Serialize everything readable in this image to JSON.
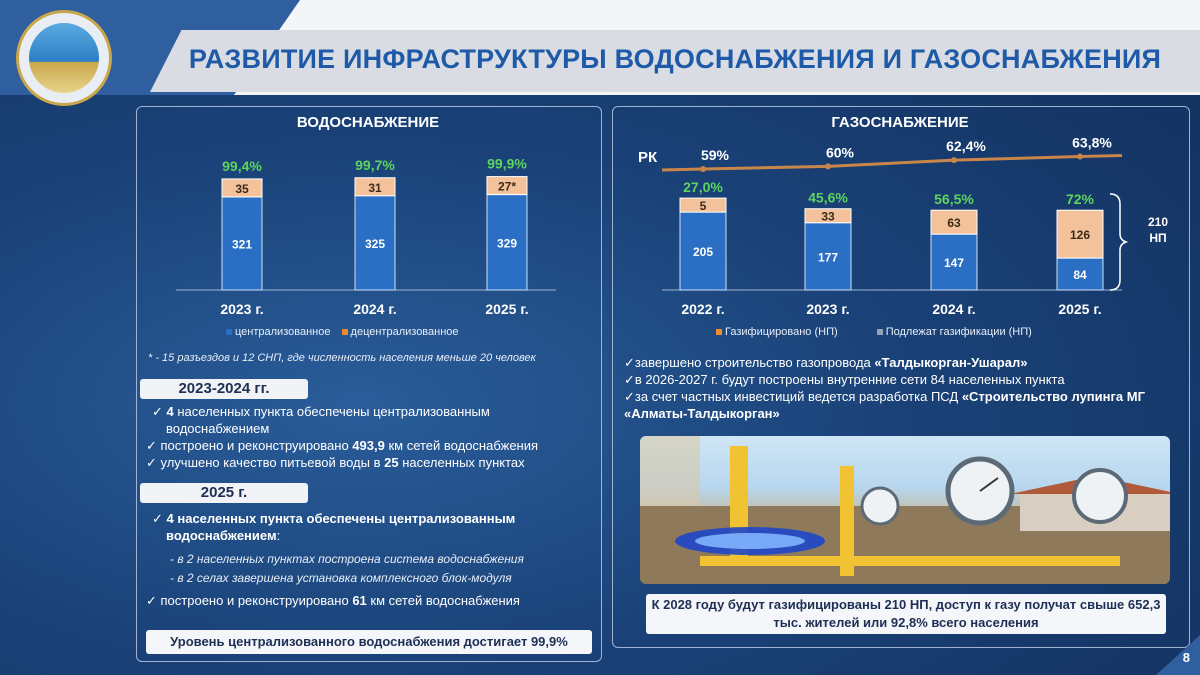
{
  "header": {
    "title": "РАЗВИТИЕ ИНФРАСТРУКТУРЫ ВОДОСНАБЖЕНИЯ И ГАЗОСНАБЖЕНИЯ"
  },
  "water": {
    "title": "ВОДОСНАБЖЕНИЕ",
    "note": "* - 15 разъездов и 12 СНП, где численность населения меньше 20 человек",
    "section1_label": "2023-2024 гг.",
    "bullets1": [
      [
        "✓ ",
        "4",
        " населенных пункта обеспечены централизованным водоснабжением"
      ],
      [
        "✓ построено и реконструировано ",
        "493,9",
        " км сетей водоснабжения"
      ],
      [
        "✓ улучшено качество питьевой воды в ",
        "25",
        " населенных пунктах"
      ]
    ],
    "section2_label": "2025 г.",
    "bullet2_main": "4 населенных пункта обеспечены централизованным водоснабжением",
    "bullet2_sub1": "- в 2 населенных пунктах построена система водоснабжения",
    "bullet2_sub2": "- в 2 селах завершена установка комплексного блок-модуля",
    "bullet2_last_pre": "построено и реконструировано ",
    "bullet2_last_num": "61",
    "bullet2_last_post": " км сетей водоснабжения",
    "footer": "Уровень централизованного водоснабжения достигает 99,9%"
  },
  "gas": {
    "title": "ГАЗОСНАБЖЕНИЕ",
    "rk_label": "РК",
    "bracket_label": "210 НП",
    "bullets": [
      [
        "✓завершено строительство газопровода ",
        "«Талдыкорган-Ушарал»",
        ""
      ],
      [
        "✓в 2026-2027 г. будут построены внутренние сети 84 населенных пункта",
        "",
        ""
      ],
      [
        "✓за счет частных инвестиций ведется разработка ПСД ",
        "«Строительство лупинга МГ «Алматы-Талдыкорган»",
        ""
      ]
    ],
    "footer": "К 2028 году будут газифицированы 210 НП, доступ к газу получат свыше 652,3 тыс. жителей или 92,8% всего населения"
  },
  "page_number": "8",
  "chart_data": [
    {
      "type": "bar",
      "stacked": true,
      "categories": [
        "2023 г.",
        "2024 г.",
        "2025 г."
      ],
      "series": [
        {
          "name": "централизованное",
          "values": [
            321,
            325,
            329
          ],
          "color": "#2b6fc4"
        },
        {
          "name": "децентрализованное",
          "values": [
            35,
            31,
            27
          ],
          "color": "#f4c29a"
        }
      ],
      "segment_labels_top": [
        "35",
        "31",
        "27*"
      ],
      "top_labels": [
        "99,4%",
        "99,7%",
        "99,9%"
      ]
    },
    {
      "type": "bar",
      "stacked": true,
      "categories": [
        "2022 г.",
        "2023 г.",
        "2024 г.",
        "2025 г."
      ],
      "series": [
        {
          "name": "Подлежат газификации (НП)",
          "values": [
            205,
            177,
            147,
            84
          ],
          "color": "#2b6fc4"
        },
        {
          "name": "Газифицировано (НП)",
          "values": [
            5,
            33,
            63,
            126
          ],
          "color": "#f4c29a"
        }
      ],
      "top_labels": [
        "27,0%",
        "45,6%",
        "56,5%",
        "72%"
      ],
      "line_series": {
        "name": "РК",
        "values_label": [
          "59%",
          "60%",
          "62,4%",
          "63,8%"
        ],
        "values": [
          59,
          60,
          62.4,
          63.8
        ],
        "color": "#c8864a"
      }
    }
  ]
}
